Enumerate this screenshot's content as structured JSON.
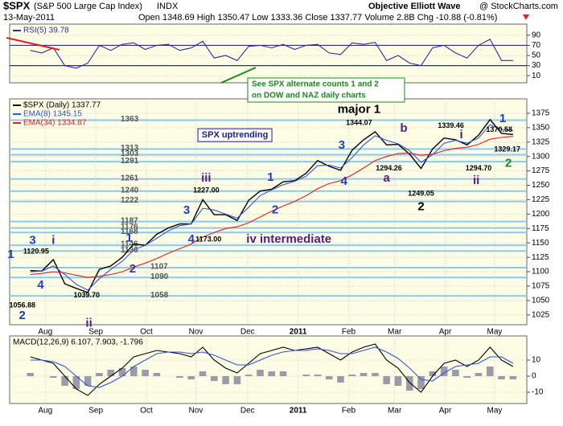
{
  "header": {
    "symbol": "$SPX",
    "name": "(S&P 500 Large Cap Index)",
    "exchange": "INDX",
    "date": "13-May-2011",
    "quote": "Open 1348.69  High 1350.47  Low 1333.36  Close 1337.77  Volume 2.8B  Chg -10.88 (-0.81%)",
    "source": "Objective Elliott Wave",
    "brand": "@ StockCharts.com",
    "note": [
      "See SPX alternate counts 1 and 2",
      "on DOW and NAZ daily charts"
    ]
  },
  "chart_data": [
    {
      "type": "line",
      "xlim": [
        -1.8,
        43.2
      ],
      "ylim": [
        -4,
        112
      ],
      "yticks": [
        10,
        30,
        50,
        70,
        90
      ],
      "bands": [
        30,
        70
      ],
      "x": [
        0,
        1,
        2,
        3,
        4,
        5,
        6,
        7,
        8,
        9,
        10,
        11,
        12,
        13,
        14,
        15,
        16,
        17,
        18,
        19,
        20,
        21,
        22,
        23,
        24,
        25,
        26,
        27,
        28,
        29,
        30,
        31,
        32,
        33,
        34,
        35,
        36,
        37,
        38,
        39,
        40,
        41,
        42
      ],
      "series": [
        {
          "name": "RSI(5) 39.78",
          "color": "#2b2b9b",
          "values": [
            60,
            55,
            65,
            30,
            25,
            35,
            70,
            60,
            72,
            75,
            62,
            70,
            72,
            60,
            65,
            78,
            45,
            50,
            40,
            68,
            70,
            65,
            72,
            62,
            70,
            72,
            55,
            52,
            75,
            72,
            76,
            40,
            50,
            35,
            30,
            65,
            70,
            55,
            45,
            70,
            82,
            40,
            40
          ]
        }
      ]
    },
    {
      "type": "line",
      "xlim": [
        -1.8,
        43.2
      ],
      "ylim": [
        1008,
        1400
      ],
      "yticks": [
        1025,
        1050,
        1075,
        1100,
        1125,
        1150,
        1175,
        1200,
        1225,
        1250,
        1275,
        1300,
        1325,
        1350,
        1375
      ],
      "xticks": [
        {
          "value": 1.3,
          "label": "Aug"
        },
        {
          "value": 5.7,
          "label": "Sep"
        },
        {
          "value": 10.1,
          "label": "Oct"
        },
        {
          "value": 14.4,
          "label": "Nov"
        },
        {
          "value": 18.9,
          "label": "Dec"
        },
        {
          "value": 23.3,
          "label": "2011"
        },
        {
          "value": 27.7,
          "label": "Feb"
        },
        {
          "value": 31.7,
          "label": "Mar"
        },
        {
          "value": 36.1,
          "label": "Apr"
        },
        {
          "value": 40.4,
          "label": "May"
        }
      ],
      "levels": [
        1363,
        1313,
        1303,
        1291,
        1261,
        1240,
        1222,
        1187,
        1176,
        1168,
        1146,
        1136,
        1107,
        1090,
        1058
      ],
      "level_color": "#8ec8ea",
      "x": [
        0,
        1,
        2,
        3,
        4,
        5,
        6,
        7,
        8,
        9,
        10,
        11,
        12,
        13,
        14,
        15,
        16,
        17,
        18,
        19,
        20,
        21,
        22,
        23,
        24,
        25,
        26,
        27,
        28,
        29,
        30,
        31,
        32,
        33,
        34,
        35,
        36,
        37,
        38,
        39,
        40,
        41,
        42
      ],
      "series": [
        {
          "name": "$SPX (Daily) 1337.77",
          "color": "#000000",
          "values": [
            1102,
            1101,
            1121,
            1079,
            1071,
            1064,
            1104,
            1110,
            1125,
            1148,
            1146,
            1165,
            1176,
            1183,
            1183,
            1225,
            1199,
            1199,
            1189,
            1224,
            1240,
            1243,
            1256,
            1258,
            1271,
            1293,
            1283,
            1276,
            1311,
            1329,
            1343,
            1320,
            1321,
            1304,
            1279,
            1313,
            1332,
            1329,
            1320,
            1337,
            1364,
            1340,
            1338
          ]
        },
        {
          "name": "EMA(8) 1345.15",
          "color": "#3355cc",
          "values": [
            1100,
            1101,
            1110,
            1095,
            1078,
            1068,
            1088,
            1104,
            1118,
            1138,
            1146,
            1158,
            1171,
            1180,
            1183,
            1210,
            1207,
            1200,
            1193,
            1212,
            1232,
            1242,
            1251,
            1257,
            1266,
            1284,
            1285,
            1280,
            1298,
            1320,
            1336,
            1328,
            1322,
            1310,
            1290,
            1303,
            1323,
            1328,
            1323,
            1332,
            1355,
            1347,
            1345
          ]
        },
        {
          "name": "EMA(34) 1334.87",
          "color": "#e02020",
          "values": [
            1095,
            1097,
            1100,
            1098,
            1094,
            1090,
            1092,
            1095,
            1100,
            1108,
            1115,
            1123,
            1132,
            1140,
            1148,
            1160,
            1168,
            1175,
            1178,
            1185,
            1195,
            1205,
            1214,
            1222,
            1232,
            1244,
            1253,
            1258,
            1268,
            1280,
            1293,
            1300,
            1305,
            1306,
            1302,
            1304,
            1310,
            1314,
            1316,
            1321,
            1330,
            1333,
            1335
          ]
        }
      ],
      "annotations": [
        {
          "text": "1",
          "x": -1.7,
          "y": 1129,
          "color": "#1f3fbf"
        },
        {
          "text": "3",
          "x": 0.2,
          "y": 1154,
          "color": "#1f3fbf"
        },
        {
          "text": "i",
          "x": 2.0,
          "y": 1154,
          "color": "#5a1a7a"
        },
        {
          "text": "1120.95",
          "x": 0.5,
          "y": 1135,
          "color": "#000000"
        },
        {
          "text": "4",
          "x": 0.9,
          "y": 1076,
          "color": "#1f3fbf"
        },
        {
          "text": "1056.88",
          "x": -0.7,
          "y": 1041,
          "color": "#000000"
        },
        {
          "text": "2",
          "x": -0.7,
          "y": 1023,
          "color": "#1f3fbf"
        },
        {
          "text": "1039.70",
          "x": 4.9,
          "y": 1059,
          "color": "#000000"
        },
        {
          "text": "ii",
          "x": 5.1,
          "y": 1010,
          "color": "#5a1a7a"
        },
        {
          "text": "1",
          "x": 8.6,
          "y": 1158,
          "color": "#1f3fbf"
        },
        {
          "text": "2",
          "x": 8.9,
          "y": 1104,
          "color": "#1f3fbf"
        },
        {
          "text": "3",
          "x": 13.6,
          "y": 1206,
          "color": "#1f3fbf"
        },
        {
          "text": "iii",
          "x": 15.3,
          "y": 1262,
          "color": "#5a1a7a"
        },
        {
          "text": "1227.00",
          "x": 15.3,
          "y": 1241,
          "color": "#000000"
        },
        {
          "text": "4",
          "x": 14.0,
          "y": 1156,
          "color": "#1f3fbf"
        },
        {
          "text": "1173.00",
          "x": 15.5,
          "y": 1156,
          "color": "#000000"
        },
        {
          "text": "iv intermediate",
          "x": 22.5,
          "y": 1156,
          "color": "#5a1a7a"
        },
        {
          "text": "1",
          "x": 20.9,
          "y": 1263,
          "color": "#1f3fbf"
        },
        {
          "text": "2",
          "x": 21.3,
          "y": 1207,
          "color": "#1f3fbf"
        },
        {
          "text": "SPX uptrending",
          "x": 17.8,
          "y": 1337,
          "color": "#1a1a9a",
          "box": true
        },
        {
          "text": "major 1",
          "x": 28.6,
          "y": 1381,
          "color": "#000000"
        },
        {
          "text": "1344.07",
          "x": 28.6,
          "y": 1358,
          "color": "#000000"
        },
        {
          "text": "3",
          "x": 27.1,
          "y": 1319,
          "color": "#1f3fbf"
        },
        {
          "text": "4",
          "x": 27.3,
          "y": 1256,
          "color": "#1f3fbf"
        },
        {
          "text": "b",
          "x": 32.5,
          "y": 1348,
          "color": "#5a1a7a"
        },
        {
          "text": "1294.26",
          "x": 31.2,
          "y": 1279,
          "color": "#000000"
        },
        {
          "text": "a",
          "x": 31.0,
          "y": 1262,
          "color": "#5a1a7a"
        },
        {
          "text": "1249.05",
          "x": 34.0,
          "y": 1235,
          "color": "#000000"
        },
        {
          "text": "2",
          "x": 34.0,
          "y": 1212,
          "color": "#000000"
        },
        {
          "text": "i",
          "x": 37.5,
          "y": 1337,
          "color": "#5a1a7a"
        },
        {
          "text": "1339.46",
          "x": 36.6,
          "y": 1353,
          "color": "#000000"
        },
        {
          "text": "1294.70",
          "x": 39.0,
          "y": 1279,
          "color": "#000000"
        },
        {
          "text": "ii",
          "x": 38.8,
          "y": 1258,
          "color": "#5a1a7a"
        },
        {
          "text": "1",
          "x": 41.1,
          "y": 1365,
          "color": "#1f3fbf"
        },
        {
          "text": "1370.58",
          "x": 40.8,
          "y": 1346,
          "color": "#000000"
        },
        {
          "text": "1329.17",
          "x": 41.5,
          "y": 1312,
          "color": "#000000"
        },
        {
          "text": "2",
          "x": 41.6,
          "y": 1288,
          "color": "#1a8a1a"
        }
      ]
    },
    {
      "type": "line",
      "title": "MACD(12,26,9) 6.107, 7.903, -1.796",
      "xlim": [
        -1.8,
        43.2
      ],
      "ylim": [
        -17,
        25
      ],
      "yticks": [
        -10,
        0,
        10
      ],
      "xticks": [
        {
          "value": 1.3,
          "label": "Aug"
        },
        {
          "value": 5.7,
          "label": "Sep"
        },
        {
          "value": 10.1,
          "label": "Oct"
        },
        {
          "value": 14.4,
          "label": "Nov"
        },
        {
          "value": 18.9,
          "label": "Dec"
        },
        {
          "value": 23.3,
          "label": "2011"
        },
        {
          "value": 27.7,
          "label": "Feb"
        },
        {
          "value": 31.7,
          "label": "Mar"
        },
        {
          "value": 36.1,
          "label": "Apr"
        },
        {
          "value": 40.4,
          "label": "May"
        }
      ],
      "x": [
        0,
        1,
        2,
        3,
        4,
        5,
        6,
        7,
        8,
        9,
        10,
        11,
        12,
        13,
        14,
        15,
        16,
        17,
        18,
        19,
        20,
        21,
        22,
        23,
        24,
        25,
        26,
        27,
        28,
        29,
        30,
        31,
        32,
        33,
        34,
        35,
        36,
        37,
        38,
        39,
        40,
        41,
        42
      ],
      "series": [
        {
          "kind": "bar",
          "color": "#9a9aa8",
          "values": [
            2,
            0,
            -1,
            -6,
            -8,
            -6,
            2,
            4,
            5,
            6,
            4,
            2,
            0,
            -1,
            -2,
            3,
            -3,
            -5,
            -5,
            1,
            4,
            3,
            3,
            0,
            1,
            1,
            -2,
            -4,
            1,
            2,
            2,
            -5,
            -6,
            -9,
            -8,
            3,
            6,
            4,
            -1,
            2,
            6,
            -2,
            -2
          ]
        },
        {
          "kind": "line",
          "color": "#000000",
          "values": [
            12,
            10,
            8,
            0,
            -8,
            -12,
            -5,
            0,
            5,
            12,
            14,
            16,
            15,
            14,
            12,
            18,
            10,
            5,
            2,
            8,
            14,
            16,
            18,
            16,
            17,
            18,
            14,
            10,
            15,
            18,
            20,
            10,
            5,
            -4,
            -10,
            0,
            8,
            10,
            6,
            10,
            18,
            10,
            6
          ]
        },
        {
          "kind": "line",
          "color": "#3355cc",
          "values": [
            10,
            10,
            9,
            6,
            0,
            -6,
            -7,
            -4,
            0,
            6,
            10,
            14,
            15,
            15,
            14,
            15,
            13,
            10,
            7,
            7,
            10,
            13,
            15,
            16,
            16,
            17,
            16,
            14,
            14,
            16,
            18,
            15,
            11,
            5,
            -2,
            -3,
            2,
            6,
            7,
            8,
            12,
            12,
            8
          ]
        }
      ]
    }
  ]
}
